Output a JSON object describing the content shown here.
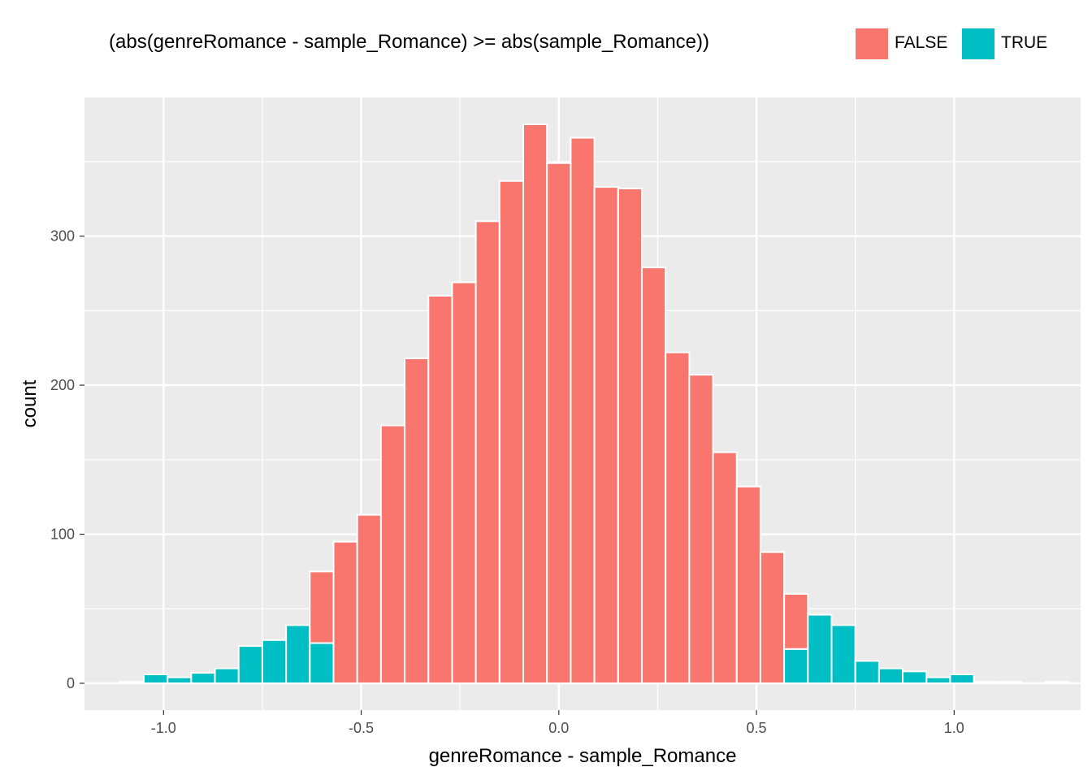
{
  "chart_data": {
    "type": "bar",
    "subtype": "histogram",
    "xlabel": "genreRomance - sample_Romance",
    "ylabel": "count",
    "legend": {
      "title": "(abs(genreRomance - sample_Romance) >= abs(sample_Romance))",
      "position": "top",
      "entries": [
        {
          "name": "FALSE",
          "color": "#F8766D"
        },
        {
          "name": "TRUE",
          "color": "#00BFC4"
        }
      ]
    },
    "xlim": [
      -1.2,
      1.32
    ],
    "ylim": [
      -18,
      393
    ],
    "x_ticks": [
      -1.0,
      -0.5,
      0.0,
      0.5,
      1.0
    ],
    "x_tick_labels": [
      "-1.0",
      "-0.5",
      "0.0",
      "0.5",
      "1.0"
    ],
    "y_ticks": [
      0,
      100,
      200,
      300
    ],
    "y_tick_labels": [
      "0",
      "100",
      "200",
      "300"
    ],
    "grid": true,
    "bin_width": 0.06,
    "bin_centers": [
      -1.08,
      -1.02,
      -0.96,
      -0.9,
      -0.84,
      -0.78,
      -0.72,
      -0.66,
      -0.6,
      -0.54,
      -0.48,
      -0.42,
      -0.36,
      -0.3,
      -0.24,
      -0.18,
      -0.12,
      -0.06,
      0.0,
      0.06,
      0.12,
      0.18,
      0.24,
      0.3,
      0.36,
      0.42,
      0.48,
      0.54,
      0.6,
      0.66,
      0.72,
      0.78,
      0.84,
      0.9,
      0.96,
      1.02,
      1.08,
      1.14,
      1.2,
      1.26
    ],
    "series": [
      {
        "name": "FALSE",
        "color": "#F8766D",
        "values": [
          0,
          0,
          0,
          0,
          0,
          0,
          0,
          0,
          48,
          95,
          113,
          173,
          218,
          260,
          269,
          310,
          337,
          375,
          349,
          366,
          333,
          332,
          279,
          222,
          207,
          155,
          132,
          88,
          37,
          0,
          0,
          0,
          0,
          0,
          0,
          0,
          0,
          0,
          0,
          0
        ]
      },
      {
        "name": "TRUE",
        "color": "#00BFC4",
        "values": [
          1,
          6,
          4,
          7,
          10,
          25,
          29,
          39,
          27,
          0,
          0,
          0,
          0,
          0,
          0,
          0,
          0,
          0,
          0,
          0,
          0,
          0,
          0,
          0,
          0,
          0,
          0,
          0,
          23,
          46,
          39,
          15,
          10,
          8,
          4,
          6,
          1,
          1,
          0,
          1
        ]
      }
    ]
  }
}
